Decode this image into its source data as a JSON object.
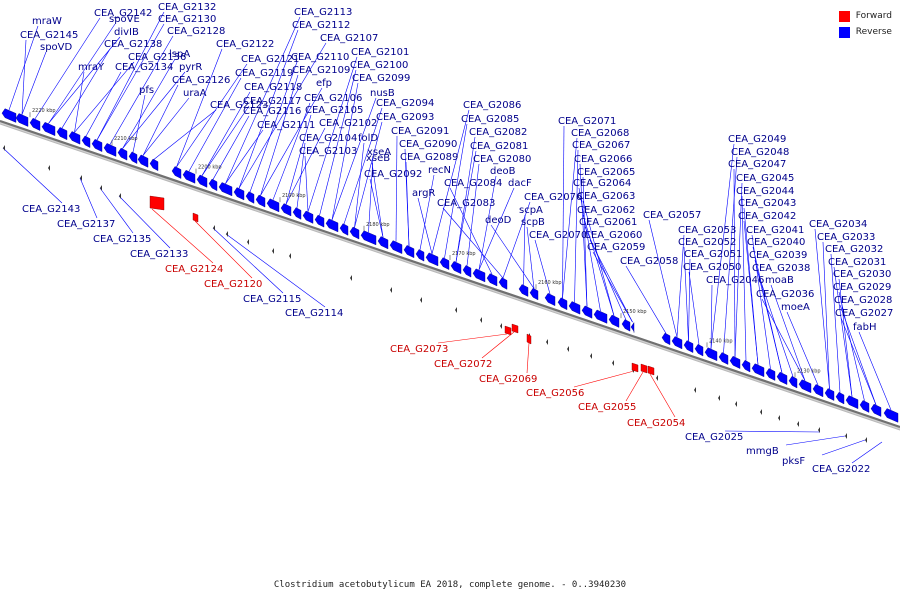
{
  "legend": [
    {
      "label": "Forward",
      "color": "#ff0000"
    },
    {
      "label": "Reverse",
      "color": "#0000ff"
    }
  ],
  "caption": "Clostridium acetobutylicum EA 2018, complete genome. - 0..3940230",
  "colors": {
    "forward": "#ff0000",
    "reverse": "#0000ff",
    "backbone": "#808080"
  },
  "ticks": [
    "2220 kbp",
    "2210 kbp",
    "2200 kbp",
    "2190 kbp",
    "2180 kbp",
    "2170 kbp",
    "2160 kbp",
    "2150 kbp",
    "2140 kbp",
    "2130 kbp"
  ],
  "labels_reverse_above": [
    "mraW",
    "CEA_G2145",
    "spoVD",
    "CEA_G2142",
    "spoVE",
    "divIB",
    "CEA_G2138",
    "mraY",
    "CEA_G2136",
    "CEA_G2134",
    "CEA_G2132",
    "CEA_G2130",
    "CEA_G2128",
    "lspA",
    "pyrR",
    "pfs",
    "CEA_G2126",
    "uraA",
    "CEA_G2123",
    "CEA_G2122",
    "CEA_G2121",
    "CEA_G2119",
    "CEA_G2118",
    "CEA_G2117",
    "CEA_G2116",
    "CEA_G2111",
    "CEA_G2113",
    "CEA_G2112",
    "CEA_G2107",
    "CEA_G2110",
    "CEA_G2109",
    "efp",
    "CEA_G2106",
    "CEA_G2105",
    "CEA_G2102",
    "CEA_G2104",
    "CEA_G2103",
    "CEA_G2101",
    "CEA_G2100",
    "CEA_G2099",
    "nusB",
    "CEA_G2094",
    "CEA_G2093",
    "folD",
    "xseA",
    "xseB",
    "CEA_G2092",
    "CEA_G2091",
    "CEA_G2090",
    "CEA_G2089",
    "recN",
    "argR",
    "CEA_G2086",
    "CEA_G2085",
    "CEA_G2082",
    "CEA_G2081",
    "CEA_G2080",
    "deoB",
    "dacF",
    "CEA_G2084",
    "CEA_G2083",
    "CEA_G2076",
    "scpA",
    "deoD",
    "scpB",
    "CEA_G2070",
    "CEA_G2071",
    "CEA_G2068",
    "CEA_G2067",
    "CEA_G2066",
    "CEA_G2065",
    "CEA_G2064",
    "CEA_G2063",
    "CEA_G2062",
    "CEA_G2061",
    "CEA_G2060",
    "CEA_G2059",
    "CEA_G2058",
    "CEA_G2057",
    "CEA_G2053",
    "CEA_G2052",
    "CEA_G2051",
    "CEA_G2050",
    "CEA_G2046",
    "CEA_G2049",
    "CEA_G2048",
    "CEA_G2047",
    "CEA_G2045",
    "CEA_G2044",
    "CEA_G2043",
    "CEA_G2042",
    "CEA_G2041",
    "CEA_G2040",
    "CEA_G2039",
    "CEA_G2038",
    "moaB",
    "CEA_G2036",
    "moeA",
    "CEA_G2034",
    "CEA_G2033",
    "CEA_G2032",
    "CEA_G2031",
    "CEA_G2030",
    "CEA_G2029",
    "CEA_G2028",
    "CEA_G2027",
    "fabH"
  ],
  "labels_reverse_below": [
    "CEA_G2143",
    "CEA_G2137",
    "CEA_G2135",
    "CEA_G2133",
    "CEA_G2115",
    "CEA_G2114",
    "CEA_G2025",
    "mmgB",
    "pksF",
    "CEA_G2022"
  ],
  "labels_forward": [
    "CEA_G2124",
    "CEA_G2120",
    "CEA_G2073",
    "CEA_G2072",
    "CEA_G2069",
    "CEA_G2056",
    "CEA_G2055",
    "CEA_G2054"
  ]
}
